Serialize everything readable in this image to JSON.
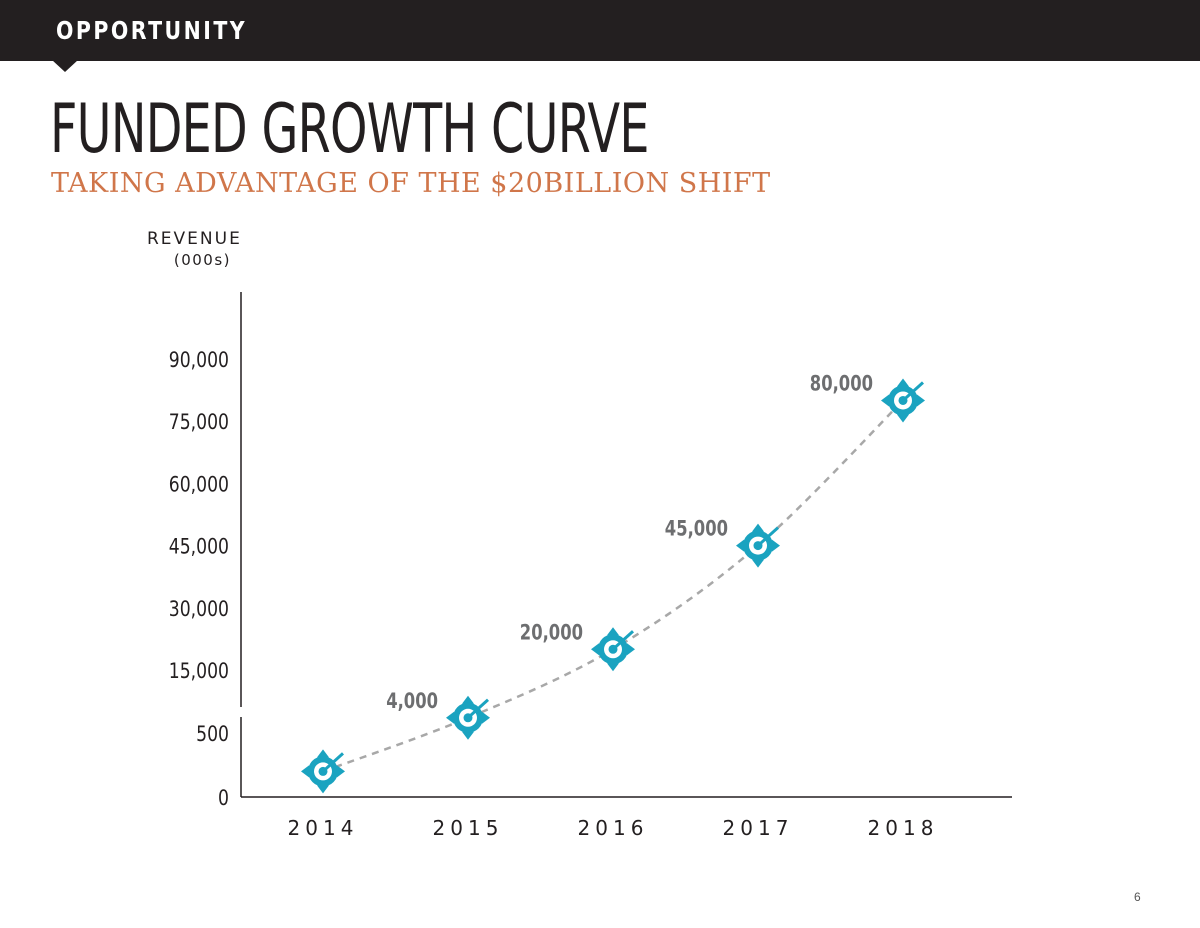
{
  "header": {
    "section": "OPPORTUNITY"
  },
  "title": "FUNDED GROWTH CURVE",
  "subtitle": "TAKING ADVANTAGE OF THE $20BILLION SHIFT",
  "page_number": "6",
  "colors": {
    "bar": "#231f20",
    "accent": "#d0764a",
    "marker": "#1aa3c0",
    "curve": "#a8a8a8",
    "label": "#6d6e70"
  },
  "chart_data": {
    "type": "line",
    "ylabel": "REVENUE",
    "yunit": "(000s)",
    "x": [
      "2014",
      "2015",
      "2016",
      "2017",
      "2018"
    ],
    "series": [
      {
        "values": [
          200,
          4000,
          20000,
          45000,
          80000
        ],
        "point_labels": [
          "",
          "4,000",
          "20,000",
          "45,000",
          "80,000"
        ]
      }
    ],
    "y_ticks": [
      "0",
      "500",
      "15,000",
      "30,000",
      "45,000",
      "60,000",
      "75,000",
      "90,000"
    ],
    "broken_axis": true,
    "marker_icon": "compass-icon",
    "grid": false
  }
}
